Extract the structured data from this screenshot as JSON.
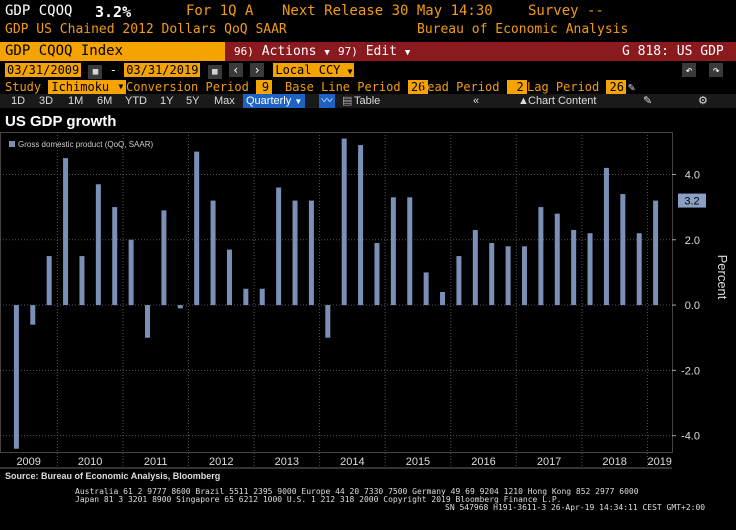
{
  "header": {
    "ticker": "GDP CQOQ",
    "value": "3.2%",
    "period_label": "For 1Q A",
    "next_release": "Next Release 30 May 14:30",
    "survey": "Survey --",
    "description": "GDP US Chained 2012 Dollars QoQ SAAR",
    "source": "Bureau of Economic Analysis"
  },
  "titlebar": {
    "index": "GDP CQOQ Index",
    "actions_num": "96)",
    "actions": "Actions",
    "edit_num": "97)",
    "edit": "Edit",
    "function": "G 818: US GDP"
  },
  "dates": {
    "start": "03/31/2009",
    "end": "03/31/2019",
    "currency": "Local CCY"
  },
  "study": {
    "label": "Study",
    "value": "Ichimoku",
    "conversion_label": "Conversion Period",
    "conversion": "9",
    "baseline_label": "Base Line Period",
    "baseline": "26",
    "lead_label": "Lead Period",
    "lead": "2",
    "lag_label": "Lag Period",
    "lag": "26"
  },
  "toolbar": {
    "ranges": [
      "1D",
      "3D",
      "1M",
      "6M",
      "YTD",
      "1Y",
      "5Y",
      "Max"
    ],
    "frequency": "Quarterly",
    "table": "Table",
    "chart_content": "Chart Content"
  },
  "chart_data": {
    "type": "bar",
    "title": "US GDP growth",
    "legend": "Gross domestic product (QoQ, SAAR)",
    "ylabel": "Percent",
    "ylim": [
      -4.5,
      5.3
    ],
    "yticks": [
      -4.0,
      -2.0,
      0.0,
      2.0,
      4.0
    ],
    "ytick_labels": [
      "-4.0",
      "-2.0",
      "0.0",
      "2.0",
      "4.0"
    ],
    "last_value_label": "3.2",
    "last_value": 3.2,
    "years": [
      "2009",
      "2010",
      "2011",
      "2012",
      "2013",
      "2014",
      "2015",
      "2016",
      "2017",
      "2018",
      "2019"
    ],
    "values": [
      -4.4,
      -0.6,
      1.5,
      4.5,
      1.5,
      3.7,
      3.0,
      2.0,
      -1.0,
      2.9,
      -0.1,
      4.7,
      3.2,
      1.7,
      0.5,
      0.5,
      3.6,
      3.2,
      3.2,
      -1.0,
      5.1,
      4.9,
      1.9,
      3.3,
      3.3,
      1.0,
      0.4,
      1.5,
      2.3,
      1.9,
      1.8,
      1.8,
      3.0,
      2.8,
      2.3,
      2.2,
      4.2,
      3.4,
      2.2,
      3.2
    ],
    "source": "Source: Bureau of Economic Analysis, Bloomberg"
  },
  "footer": {
    "line1": "Australia 61 2 9777 8600 Brazil 5511 2395 9000 Europe 44 20 7330 7500 Germany 49 69 9204 1210 Hong Kong 852 2977 6000",
    "line2": "Japan 81 3 3201 8900       Singapore 65 6212 1000       U.S. 1 212 318 2000           Copyright 2019 Bloomberg Finance L.P.",
    "line3": "SN 547968 H191-3611-3 26-Apr-19 14:34:11 CEST GMT+2:00"
  },
  "colors": {
    "bar": "#7b90b6",
    "orange": "#f5a300",
    "titlebar": "#8b1a1f"
  }
}
